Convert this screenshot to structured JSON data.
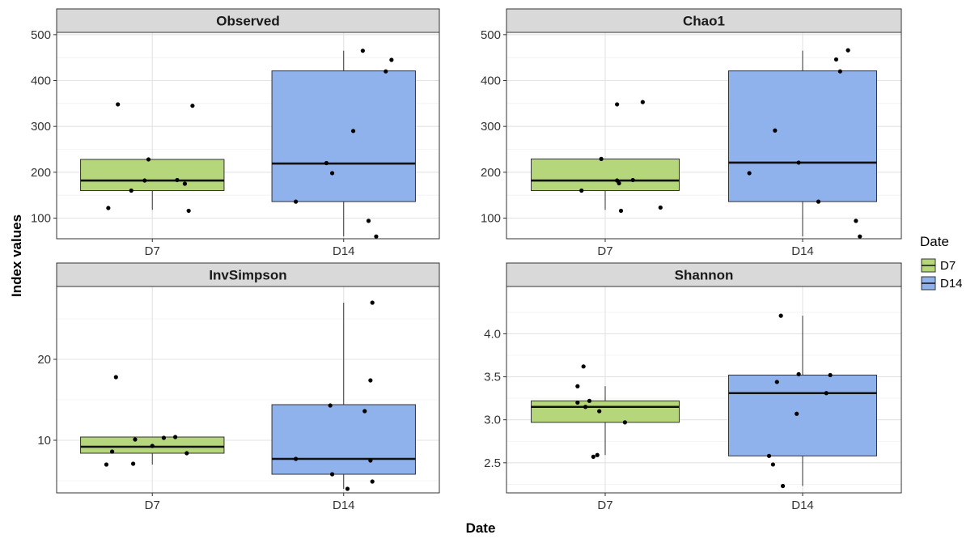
{
  "chart_data": {
    "type": "box",
    "xlabel": "Date",
    "ylabel": "Index values",
    "categories": [
      "D7",
      "D14"
    ],
    "legend": {
      "title": "Date",
      "position": "right",
      "entries": [
        {
          "label": "D7",
          "color": "#b5d67a"
        },
        {
          "label": "D14",
          "color": "#8fb1ec"
        }
      ]
    },
    "grid": true,
    "panels": [
      {
        "title": "Observed",
        "ylim": [
          55,
          505
        ],
        "yticks": [
          100,
          200,
          300,
          400,
          500
        ],
        "ytick_labels": [
          "100",
          "200",
          "300",
          "400",
          "500"
        ],
        "boxes": [
          {
            "category": "D7",
            "lower_whisker": 118,
            "q1": 160,
            "median": 182,
            "q3": 228,
            "upper_whisker": 228
          },
          {
            "category": "D14",
            "lower_whisker": 60,
            "q1": 136,
            "median": 219,
            "q3": 421,
            "upper_whisker": 465
          }
        ],
        "points": [
          {
            "category": "D7",
            "jitter": -0.23,
            "value": 122
          },
          {
            "category": "D7",
            "jitter": -0.11,
            "value": 160
          },
          {
            "category": "D7",
            "jitter": -0.02,
            "value": 228
          },
          {
            "category": "D7",
            "jitter": -0.04,
            "value": 182
          },
          {
            "category": "D7",
            "jitter": -0.18,
            "value": 348
          },
          {
            "category": "D7",
            "jitter": 0.13,
            "value": 183
          },
          {
            "category": "D7",
            "jitter": 0.17,
            "value": 175
          },
          {
            "category": "D7",
            "jitter": 0.19,
            "value": 116
          },
          {
            "category": "D7",
            "jitter": 0.21,
            "value": 345
          },
          {
            "category": "D14",
            "jitter": -0.25,
            "value": 136
          },
          {
            "category": "D14",
            "jitter": -0.09,
            "value": 220
          },
          {
            "category": "D14",
            "jitter": -0.06,
            "value": 198
          },
          {
            "category": "D14",
            "jitter": 0.05,
            "value": 290
          },
          {
            "category": "D14",
            "jitter": 0.1,
            "value": 465
          },
          {
            "category": "D14",
            "jitter": 0.13,
            "value": 94
          },
          {
            "category": "D14",
            "jitter": 0.17,
            "value": 60
          },
          {
            "category": "D14",
            "jitter": 0.22,
            "value": 420
          },
          {
            "category": "D14",
            "jitter": 0.25,
            "value": 445
          }
        ]
      },
      {
        "title": "Chao1",
        "ylim": [
          55,
          505
        ],
        "yticks": [
          100,
          200,
          300,
          400,
          500
        ],
        "ytick_labels": [
          "100",
          "200",
          "300",
          "400",
          "500"
        ],
        "boxes": [
          {
            "category": "D7",
            "lower_whisker": 118,
            "q1": 160,
            "median": 182,
            "q3": 229,
            "upper_whisker": 229
          },
          {
            "category": "D14",
            "lower_whisker": 60,
            "q1": 136,
            "median": 221,
            "q3": 421,
            "upper_whisker": 465
          }
        ],
        "points": [
          {
            "category": "D7",
            "jitter": -0.12,
            "value": 160
          },
          {
            "category": "D7",
            "jitter": -0.02,
            "value": 229
          },
          {
            "category": "D7",
            "jitter": 0.06,
            "value": 182
          },
          {
            "category": "D7",
            "jitter": 0.07,
            "value": 176
          },
          {
            "category": "D7",
            "jitter": 0.06,
            "value": 348
          },
          {
            "category": "D7",
            "jitter": 0.14,
            "value": 183
          },
          {
            "category": "D7",
            "jitter": 0.19,
            "value": 353
          },
          {
            "category": "D7",
            "jitter": 0.28,
            "value": 123
          },
          {
            "category": "D7",
            "jitter": 0.08,
            "value": 116
          },
          {
            "category": "D14",
            "jitter": -0.27,
            "value": 198
          },
          {
            "category": "D14",
            "jitter": -0.14,
            "value": 291
          },
          {
            "category": "D14",
            "jitter": -0.02,
            "value": 221
          },
          {
            "category": "D14",
            "jitter": 0.08,
            "value": 136
          },
          {
            "category": "D14",
            "jitter": 0.17,
            "value": 446
          },
          {
            "category": "D14",
            "jitter": 0.19,
            "value": 420
          },
          {
            "category": "D14",
            "jitter": 0.23,
            "value": 466
          },
          {
            "category": "D14",
            "jitter": 0.27,
            "value": 94
          },
          {
            "category": "D14",
            "jitter": 0.29,
            "value": 60
          }
        ]
      },
      {
        "title": "InvSimpson",
        "ylim": [
          3.5,
          29
        ],
        "yticks": [
          10,
          20
        ],
        "ytick_labels": [
          "10",
          "20"
        ],
        "boxes": [
          {
            "category": "D7",
            "lower_whisker": 7.0,
            "q1": 8.4,
            "median": 9.2,
            "q3": 10.4,
            "upper_whisker": 10.4
          },
          {
            "category": "D14",
            "lower_whisker": 4.0,
            "q1": 5.8,
            "median": 7.7,
            "q3": 14.4,
            "upper_whisker": 27.0
          }
        ],
        "points": [
          {
            "category": "D7",
            "jitter": -0.19,
            "value": 17.8
          },
          {
            "category": "D7",
            "jitter": -0.21,
            "value": 8.6
          },
          {
            "category": "D7",
            "jitter": -0.24,
            "value": 7.0
          },
          {
            "category": "D7",
            "jitter": -0.09,
            "value": 10.1
          },
          {
            "category": "D7",
            "jitter": -0.1,
            "value": 7.1
          },
          {
            "category": "D7",
            "jitter": 0.0,
            "value": 9.3
          },
          {
            "category": "D7",
            "jitter": 0.06,
            "value": 10.3
          },
          {
            "category": "D7",
            "jitter": 0.12,
            "value": 10.4
          },
          {
            "category": "D7",
            "jitter": 0.18,
            "value": 8.4
          },
          {
            "category": "D14",
            "jitter": -0.25,
            "value": 7.7
          },
          {
            "category": "D14",
            "jitter": -0.06,
            "value": 5.8
          },
          {
            "category": "D14",
            "jitter": -0.07,
            "value": 14.3
          },
          {
            "category": "D14",
            "jitter": 0.02,
            "value": 4.0
          },
          {
            "category": "D14",
            "jitter": 0.11,
            "value": 13.6
          },
          {
            "category": "D14",
            "jitter": 0.14,
            "value": 17.4
          },
          {
            "category": "D14",
            "jitter": 0.15,
            "value": 27.0
          },
          {
            "category": "D14",
            "jitter": 0.14,
            "value": 7.5
          },
          {
            "category": "D14",
            "jitter": 0.15,
            "value": 4.9
          }
        ]
      },
      {
        "title": "Shannon",
        "ylim": [
          2.15,
          4.55
        ],
        "yticks": [
          2.5,
          3.0,
          3.5,
          4.0
        ],
        "ytick_labels": [
          "2.5",
          "3.0",
          "3.5",
          "4.0"
        ],
        "boxes": [
          {
            "category": "D7",
            "lower_whisker": 2.59,
            "q1": 2.97,
            "median": 3.15,
            "q3": 3.22,
            "upper_whisker": 3.39
          },
          {
            "category": "D14",
            "lower_whisker": 2.23,
            "q1": 2.58,
            "median": 3.31,
            "q3": 3.52,
            "upper_whisker": 4.21
          }
        ],
        "points": [
          {
            "category": "D7",
            "jitter": -0.14,
            "value": 3.39
          },
          {
            "category": "D7",
            "jitter": -0.14,
            "value": 3.2
          },
          {
            "category": "D7",
            "jitter": -0.11,
            "value": 3.62
          },
          {
            "category": "D7",
            "jitter": -0.1,
            "value": 3.15
          },
          {
            "category": "D7",
            "jitter": -0.08,
            "value": 3.22
          },
          {
            "category": "D7",
            "jitter": -0.03,
            "value": 3.1
          },
          {
            "category": "D7",
            "jitter": -0.06,
            "value": 2.57
          },
          {
            "category": "D7",
            "jitter": -0.04,
            "value": 2.59
          },
          {
            "category": "D7",
            "jitter": 0.1,
            "value": 2.97
          },
          {
            "category": "D14",
            "jitter": -0.17,
            "value": 2.58
          },
          {
            "category": "D14",
            "jitter": -0.15,
            "value": 2.48
          },
          {
            "category": "D14",
            "jitter": -0.13,
            "value": 3.44
          },
          {
            "category": "D14",
            "jitter": -0.11,
            "value": 4.21
          },
          {
            "category": "D14",
            "jitter": -0.1,
            "value": 2.23
          },
          {
            "category": "D14",
            "jitter": -0.03,
            "value": 3.07
          },
          {
            "category": "D14",
            "jitter": -0.02,
            "value": 3.53
          },
          {
            "category": "D14",
            "jitter": 0.12,
            "value": 3.31
          },
          {
            "category": "D14",
            "jitter": 0.14,
            "value": 3.52
          }
        ]
      }
    ]
  }
}
